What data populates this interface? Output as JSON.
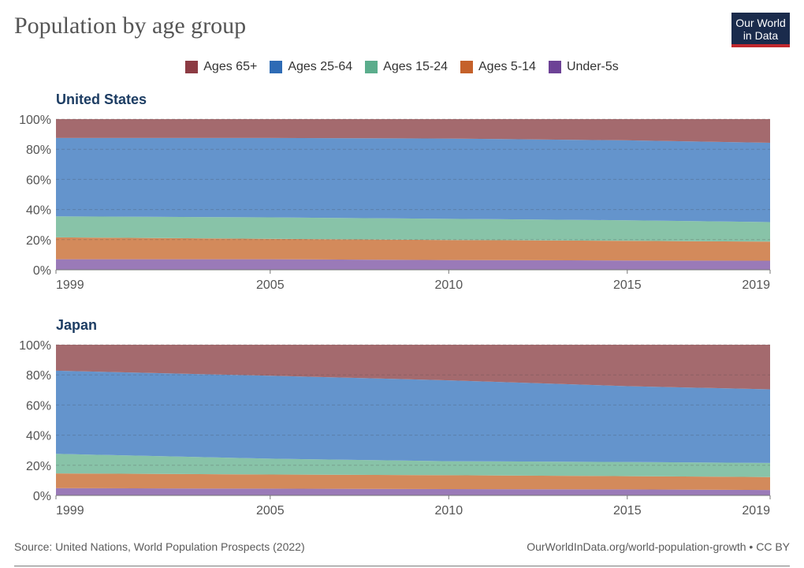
{
  "header": {
    "title": "Population by age group",
    "logo_line1": "Our World",
    "logo_line2": "in Data"
  },
  "colors": {
    "Ages 65+": "#a46a6e",
    "Ages 25-64": "#6494cc",
    "Ages 15-24": "#88c3a8",
    "Ages 5-14": "#d38a5b",
    "Under-5s": "#9a7ab8"
  },
  "legend": [
    {
      "label": "Ages 65+",
      "color": "#8c3b43"
    },
    {
      "label": "Ages 25-64",
      "color": "#2e6bb5"
    },
    {
      "label": "Ages 15-24",
      "color": "#5bad8c"
    },
    {
      "label": "Ages 5-14",
      "color": "#c5612a"
    },
    {
      "label": "Under-5s",
      "color": "#6d4296"
    }
  ],
  "footer": {
    "source": "Source: United Nations, World Population Prospects (2022)",
    "attribution": "OurWorldInData.org/world-population-growth • CC BY"
  },
  "chart_data": [
    {
      "type": "area",
      "title": "United States",
      "stacked": "percent",
      "x": [
        1999,
        2005,
        2010,
        2015,
        2019
      ],
      "xticks": [
        "1999",
        "2005",
        "2010",
        "2015",
        "2019"
      ],
      "yticks": [
        "0%",
        "20%",
        "40%",
        "60%",
        "80%",
        "100%"
      ],
      "ylim": [
        0,
        100
      ],
      "series": [
        {
          "name": "Under-5s",
          "values": [
            7,
            7,
            6.5,
            6.2,
            6
          ]
        },
        {
          "name": "Ages 5-14",
          "values": [
            14.5,
            13.5,
            13.3,
            13,
            12.7
          ]
        },
        {
          "name": "Ages 15-24",
          "values": [
            14,
            14.3,
            14,
            13.7,
            13
          ]
        },
        {
          "name": "Ages 25-64",
          "values": [
            52,
            52.7,
            53.3,
            53,
            52.6
          ]
        },
        {
          "name": "Ages 65+",
          "values": [
            12.5,
            12.5,
            12.9,
            14.1,
            15.7
          ]
        }
      ]
    },
    {
      "type": "area",
      "title": "Japan",
      "stacked": "percent",
      "x": [
        1999,
        2005,
        2010,
        2015,
        2019
      ],
      "xticks": [
        "1999",
        "2005",
        "2010",
        "2015",
        "2019"
      ],
      "yticks": [
        "0%",
        "20%",
        "40%",
        "60%",
        "80%",
        "100%"
      ],
      "ylim": [
        0,
        100
      ],
      "series": [
        {
          "name": "Under-5s",
          "values": [
            4.8,
            4.5,
            4.2,
            4,
            3.6
          ]
        },
        {
          "name": "Ages 5-14",
          "values": [
            9.8,
            9.4,
            9.2,
            8.8,
            8.6
          ]
        },
        {
          "name": "Ages 15-24",
          "values": [
            13,
            10.5,
            9.3,
            9.4,
            9.3
          ]
        },
        {
          "name": "Ages 25-64",
          "values": [
            55.2,
            55,
            53.7,
            50.3,
            48.9
          ]
        },
        {
          "name": "Ages 65+",
          "values": [
            17.2,
            20.6,
            23.6,
            27.5,
            29.6
          ]
        }
      ]
    }
  ]
}
